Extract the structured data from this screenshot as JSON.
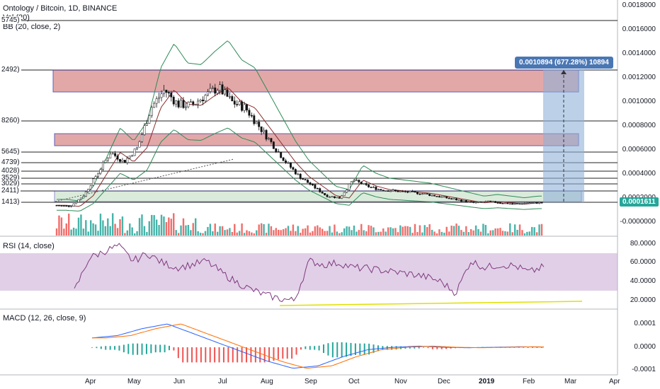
{
  "main_legend": {
    "title": "Ontology / Bitcoin, 1D, BINANCE",
    "vol": "Vol (20)",
    "bb": "BB (20, close, 2)"
  },
  "rsi_legend": "RSI (14, close)",
  "macd_legend": "MACD (12, 26, close, 9)",
  "price_axis": [
    "0.0018000",
    "0.0016000",
    "0.0014000",
    "0.0012000",
    "0.0010000",
    "0.0008000",
    "0.0006000",
    "0.0004000",
    "0.0002000",
    "-0.0000000"
  ],
  "rsi_axis": [
    "80.0000",
    "60.0000",
    "40.0000",
    "20.0000"
  ],
  "macd_axis": [
    "0.0001",
    "0.0000",
    "-0.0001"
  ],
  "current_price_tag": "0.0001611",
  "measure_tag": "0.0010894 (677.28%) 10894",
  "level_labels": [
    "5745)",
    "2492)",
    "8260)",
    "5645)",
    "4739)",
    "4028)",
    "3529)",
    "3029)",
    "2411)",
    "1413)"
  ],
  "months": [
    {
      "label": "Apr",
      "bold": false
    },
    {
      "label": "May",
      "bold": false
    },
    {
      "label": "Jun",
      "bold": false
    },
    {
      "label": "Jul",
      "bold": false
    },
    {
      "label": "Aug",
      "bold": false
    },
    {
      "label": "Sep",
      "bold": false
    },
    {
      "label": "Oct",
      "bold": false
    },
    {
      "label": "Nov",
      "bold": false
    },
    {
      "label": "Dec",
      "bold": false
    },
    {
      "label": "2019",
      "bold": true
    },
    {
      "label": "Feb",
      "bold": false
    },
    {
      "label": "Mar",
      "bold": false
    },
    {
      "label": "Apr",
      "bold": false
    }
  ],
  "colors": {
    "up": "#26a69a",
    "down": "#ef5350",
    "bb": "#2e8b57",
    "ma": "#8b2c2c",
    "rsi": "#7e3a7e",
    "rsi_band": "#c9a7d4",
    "macd": "#2962ff",
    "signal": "#ff6d00",
    "zone": "#d98c8c",
    "measure": "#8fb0d8"
  },
  "chart_data": {
    "type": "candlestick",
    "title": "Ontology / Bitcoin, 1D, BINANCE",
    "x_range": [
      "2018-03",
      "2019-04"
    ],
    "y_range": [
      -0.0001,
      0.0018
    ],
    "close_series": [
      0.00014,
      0.00013,
      0.00022,
      0.0004,
      0.00058,
      0.0005,
      0.00062,
      0.00095,
      0.0011,
      0.00098,
      0.00097,
      0.00105,
      0.00112,
      0.001,
      0.00095,
      0.0008,
      0.00065,
      0.0005,
      0.00038,
      0.0003,
      0.00022,
      0.0002,
      0.00035,
      0.0003,
      0.00027,
      0.00026,
      0.00025,
      0.00024,
      0.00022,
      0.0002,
      0.00018,
      0.00016,
      0.00017,
      0.00016,
      0.00015,
      0.00016,
      0.00016
    ],
    "rsi_range": [
      20,
      80
    ],
    "macd_range": [
      -0.0001,
      0.0001
    ]
  }
}
